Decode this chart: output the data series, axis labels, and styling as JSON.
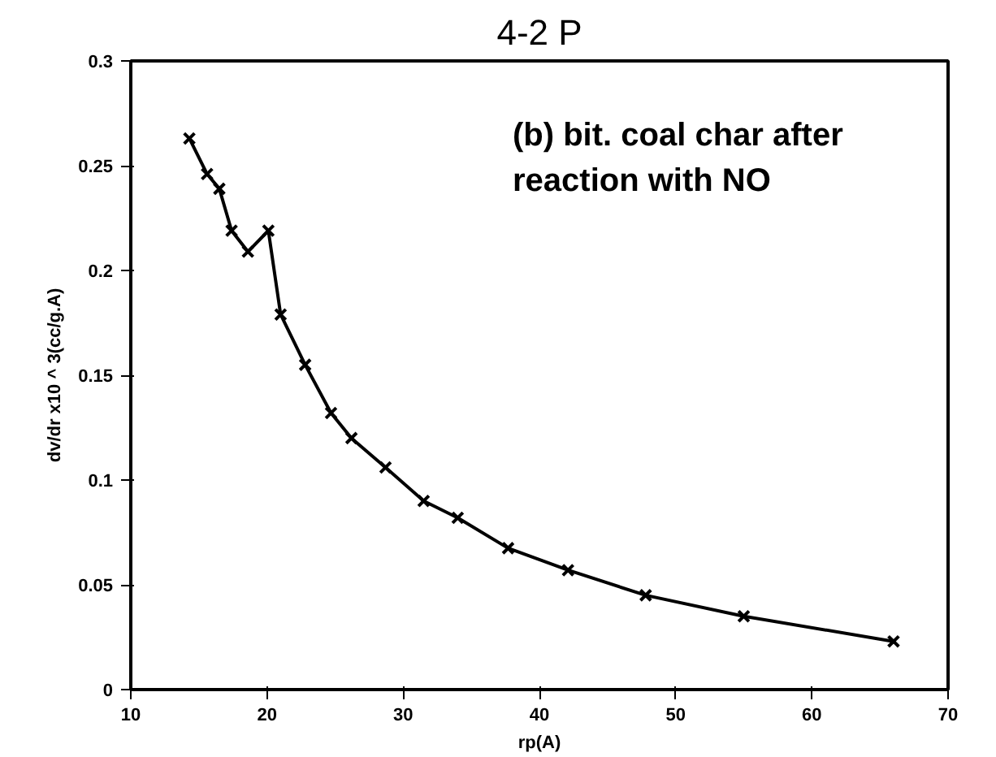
{
  "chart_data": {
    "type": "line",
    "title": "4-2 P",
    "xlabel": "rp(A)",
    "ylabel": "dv/dr x10 ^ 3(cc/g.A)",
    "annotations": [
      "(b) bit. coal char after\nreaction with NO"
    ],
    "x": [
      14.3,
      15.6,
      16.5,
      17.4,
      18.6,
      20.1,
      21.0,
      22.8,
      24.7,
      26.2,
      28.7,
      31.5,
      34.0,
      37.7,
      42.1,
      47.8,
      55.0,
      66.0
    ],
    "series": [
      {
        "color": "#000000",
        "values": [
          0.263,
          0.246,
          0.239,
          0.219,
          0.209,
          0.219,
          0.179,
          0.155,
          0.132,
          0.12,
          0.106,
          0.09,
          0.082,
          0.0675,
          0.057,
          0.045,
          0.035,
          0.023
        ]
      }
    ],
    "xlim": [
      10,
      70
    ],
    "ylim": [
      0,
      0.3
    ],
    "xticks": [
      10,
      20,
      30,
      40,
      50,
      60,
      70
    ],
    "yticks": [
      0,
      0.05,
      0.1,
      0.15,
      0.2,
      0.25,
      0.3
    ],
    "grid": false,
    "marker": "cross",
    "line_style": "solid"
  }
}
